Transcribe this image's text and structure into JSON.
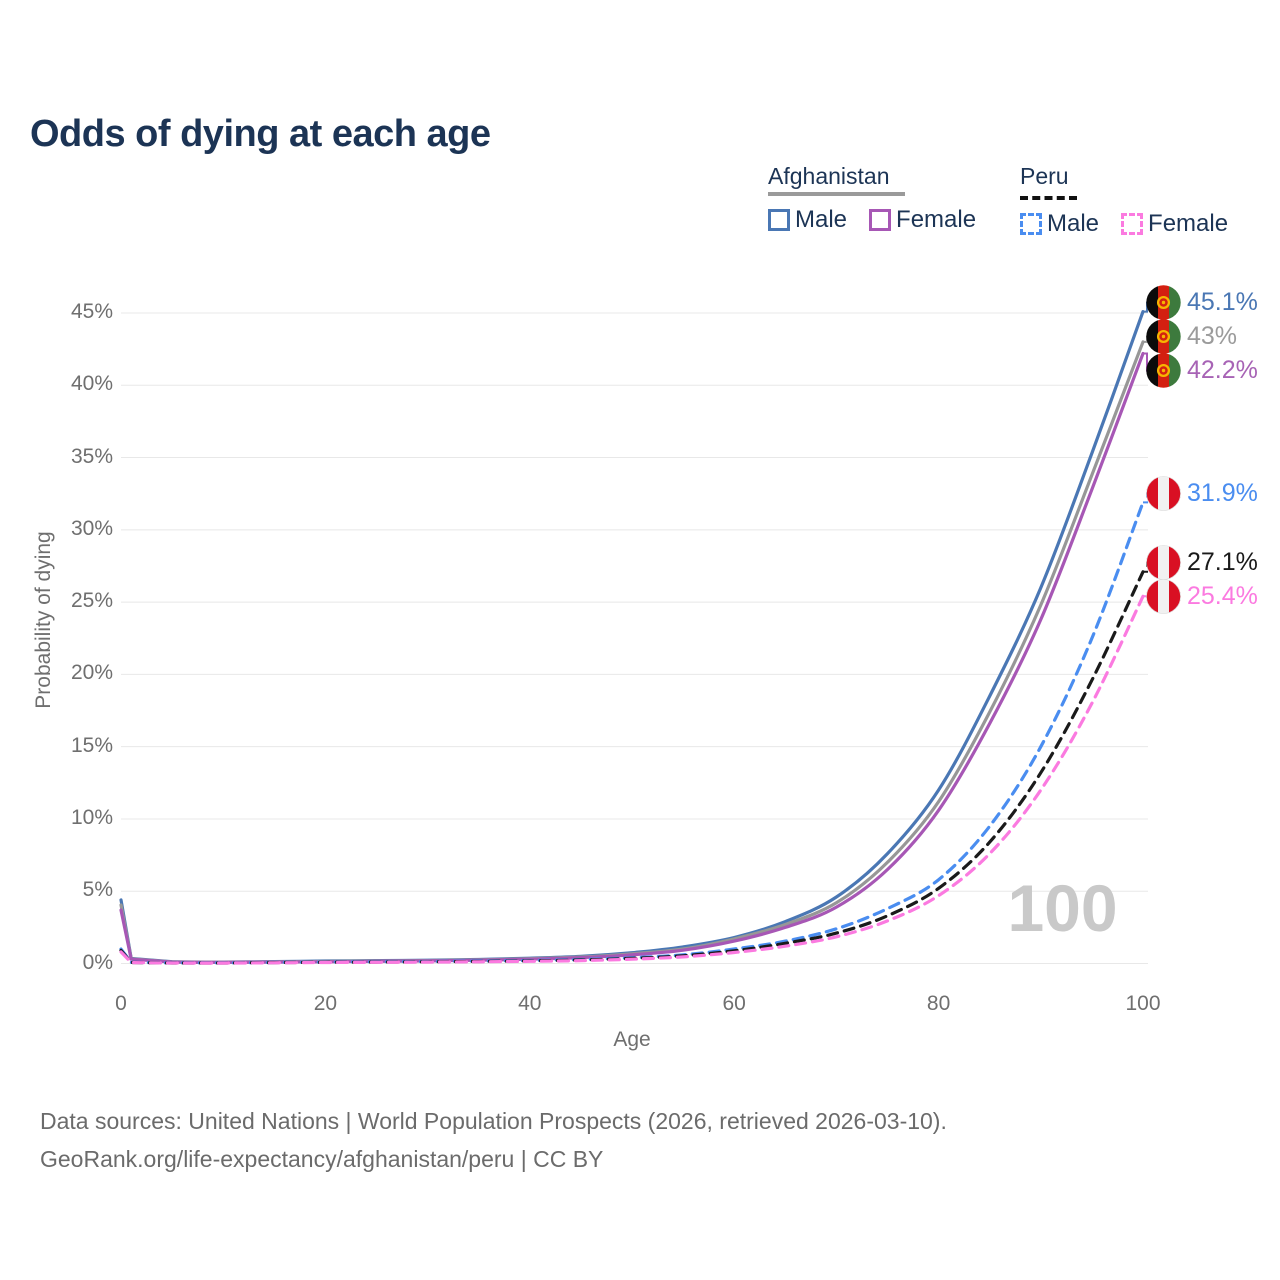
{
  "title": "Odds of dying at each age",
  "legend": {
    "groups": [
      {
        "label": "Afghanistan",
        "line_style": "solid",
        "underline_color": "#9a9a9a",
        "items": [
          {
            "label": "Male",
            "color": "#4a77b4",
            "dashed": false
          },
          {
            "label": "Female",
            "color": "#a757b5",
            "dashed": false
          }
        ]
      },
      {
        "label": "Peru",
        "line_style": "dashed",
        "underline_color": "#111111",
        "items": [
          {
            "label": "Male",
            "color": "#4a8df0",
            "dashed": true
          },
          {
            "label": "Female",
            "color": "#fb7ae0",
            "dashed": true
          }
        ]
      }
    ]
  },
  "chart_data": {
    "type": "line",
    "title": "Odds of dying at each age",
    "xlabel": "Age",
    "ylabel": "Probability of dying",
    "xlim": [
      0,
      100
    ],
    "ylim": [
      0,
      45
    ],
    "x_ticks": [
      0,
      20,
      40,
      60,
      80,
      100
    ],
    "y_tick_labels": [
      "0%",
      "5%",
      "10%",
      "15%",
      "20%",
      "25%",
      "30%",
      "35%",
      "40%",
      "45%"
    ],
    "grid": "horizontal",
    "legend_position": "top-right",
    "hover_age": "100",
    "x": [
      0,
      1,
      5,
      10,
      15,
      20,
      25,
      30,
      35,
      40,
      45,
      50,
      55,
      60,
      65,
      70,
      75,
      80,
      85,
      90,
      95,
      100
    ],
    "series": [
      {
        "name": "Afghanistan Male",
        "country": "Afghanistan",
        "sex": "Male",
        "color": "#4a77b4",
        "label_color": "#4a77b4",
        "dashed": false,
        "end_label": "45.1%",
        "flag": "afghanistan",
        "values": [
          4.4,
          0.35,
          0.12,
          0.1,
          0.13,
          0.17,
          0.2,
          0.23,
          0.28,
          0.37,
          0.5,
          0.75,
          1.15,
          1.8,
          2.9,
          4.6,
          7.6,
          12.0,
          18.5,
          26.0,
          35.3,
          45.1
        ]
      },
      {
        "name": "Afghanistan Combined",
        "country": "Afghanistan",
        "sex": "Both",
        "color": "#979797",
        "label_color": "#9b9b9b",
        "dashed": false,
        "end_label": "43%",
        "flag": "afghanistan",
        "values": [
          4.05,
          0.32,
          0.11,
          0.09,
          0.11,
          0.14,
          0.17,
          0.2,
          0.25,
          0.33,
          0.45,
          0.67,
          1.0,
          1.7,
          2.7,
          4.2,
          7.0,
          11.2,
          17.4,
          24.8,
          33.8,
          43.0
        ]
      },
      {
        "name": "Afghanistan Female",
        "country": "Afghanistan",
        "sex": "Female",
        "color": "#a757b5",
        "label_color": "#a763b5",
        "dashed": false,
        "end_label": "42.2%",
        "flag": "afghanistan",
        "values": [
          3.7,
          0.3,
          0.1,
          0.08,
          0.1,
          0.12,
          0.15,
          0.18,
          0.23,
          0.3,
          0.41,
          0.6,
          0.92,
          1.55,
          2.5,
          3.9,
          6.5,
          10.6,
          16.6,
          23.8,
          32.8,
          42.2
        ]
      },
      {
        "name": "Peru Male",
        "country": "Peru",
        "sex": "Male",
        "color": "#4a8df0",
        "label_color": "#4a8df0",
        "dashed": true,
        "end_label": "31.9%",
        "flag": "peru",
        "values": [
          1.0,
          0.08,
          0.04,
          0.04,
          0.07,
          0.1,
          0.12,
          0.14,
          0.17,
          0.21,
          0.28,
          0.4,
          0.6,
          1.0,
          1.55,
          2.4,
          3.8,
          5.8,
          9.5,
          15.0,
          22.5,
          31.9
        ]
      },
      {
        "name": "Peru Combined",
        "country": "Peru",
        "sex": "Both",
        "color": "#1a1a1a",
        "label_color": "#1a1a1a",
        "dashed": true,
        "end_label": "27.1%",
        "flag": "peru",
        "values": [
          0.9,
          0.07,
          0.035,
          0.035,
          0.06,
          0.08,
          0.1,
          0.12,
          0.14,
          0.18,
          0.24,
          0.35,
          0.53,
          0.88,
          1.4,
          2.1,
          3.3,
          5.2,
          8.4,
          13.2,
          19.6,
          27.1
        ]
      },
      {
        "name": "Peru Female",
        "country": "Peru",
        "sex": "Female",
        "color": "#fb7ae0",
        "label_color": "#fb7ae0",
        "dashed": true,
        "end_label": "25.4%",
        "flag": "peru",
        "values": [
          0.8,
          0.065,
          0.03,
          0.03,
          0.05,
          0.07,
          0.08,
          0.1,
          0.12,
          0.15,
          0.2,
          0.3,
          0.46,
          0.76,
          1.2,
          1.85,
          2.95,
          4.7,
          7.6,
          12.0,
          18.0,
          25.4
        ]
      }
    ]
  },
  "footer": {
    "line1": "Data sources: United Nations | World Population Prospects (2026, retrieved 2026-03-10).",
    "line2": "GeoRank.org/life-expectancy/afghanistan/peru | CC BY"
  }
}
